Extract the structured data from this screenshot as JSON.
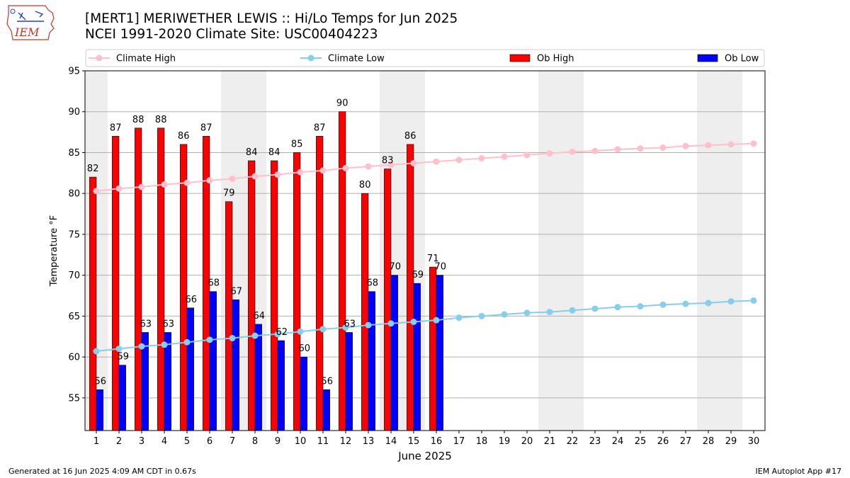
{
  "header": {
    "logo_text": "IEM",
    "title_line1": "[MERT1] MERIWETHER LEWIS :: Hi/Lo Temps for Jun 2025",
    "title_line2": "NCEI 1991-2020 Climate Site: USC00404223"
  },
  "footer": {
    "generated": "Generated at 16 Jun 2025 4:09 AM CDT in 0.67s",
    "app": "IEM Autoplot App #17"
  },
  "colors": {
    "ob_high": "#ff0000",
    "ob_low": "#0000ff",
    "climate_high": "#ffc0cb",
    "climate_low": "#87ceeb",
    "weekend_band": "#eeeeee",
    "grid": "#b0b0b0"
  },
  "chart_data": {
    "type": "bar",
    "xlabel": "June 2025",
    "ylabel": "Temperature °F",
    "xlim": [
      0.5,
      30.5
    ],
    "ylim": [
      51,
      95
    ],
    "yticks": [
      55,
      60,
      65,
      70,
      75,
      80,
      85,
      90,
      95
    ],
    "grid": "horizontal",
    "legend_position": "top",
    "legend": [
      "Climate High",
      "Climate Low",
      "Ob High",
      "Ob Low"
    ],
    "shaded_days": [
      1,
      7,
      8,
      14,
      15,
      21,
      22,
      28,
      29
    ],
    "days": [
      1,
      2,
      3,
      4,
      5,
      6,
      7,
      8,
      9,
      10,
      11,
      12,
      13,
      14,
      15,
      16,
      17,
      18,
      19,
      20,
      21,
      22,
      23,
      24,
      25,
      26,
      27,
      28,
      29,
      30
    ],
    "ob_high": [
      82,
      87,
      88,
      88,
      86,
      87,
      79,
      84,
      84,
      85,
      87,
      90,
      80,
      83,
      86,
      71
    ],
    "ob_low": [
      56,
      59,
      63,
      63,
      66,
      68,
      67,
      64,
      62,
      60,
      56,
      63,
      68,
      70,
      69,
      70
    ],
    "climate_high": [
      80.3,
      80.6,
      80.8,
      81.1,
      81.3,
      81.6,
      81.8,
      82.1,
      82.3,
      82.6,
      82.8,
      83.1,
      83.3,
      83.5,
      83.7,
      83.9,
      84.1,
      84.3,
      84.5,
      84.7,
      84.9,
      85.1,
      85.2,
      85.4,
      85.5,
      85.6,
      85.8,
      85.9,
      86.0,
      86.1
    ],
    "climate_low": [
      60.7,
      61.0,
      61.3,
      61.5,
      61.8,
      62.1,
      62.3,
      62.6,
      62.8,
      63.1,
      63.4,
      63.6,
      63.9,
      64.1,
      64.3,
      64.5,
      64.8,
      65.0,
      65.2,
      65.4,
      65.5,
      65.7,
      65.9,
      66.1,
      66.2,
      66.4,
      66.5,
      66.6,
      66.8,
      66.9
    ]
  }
}
